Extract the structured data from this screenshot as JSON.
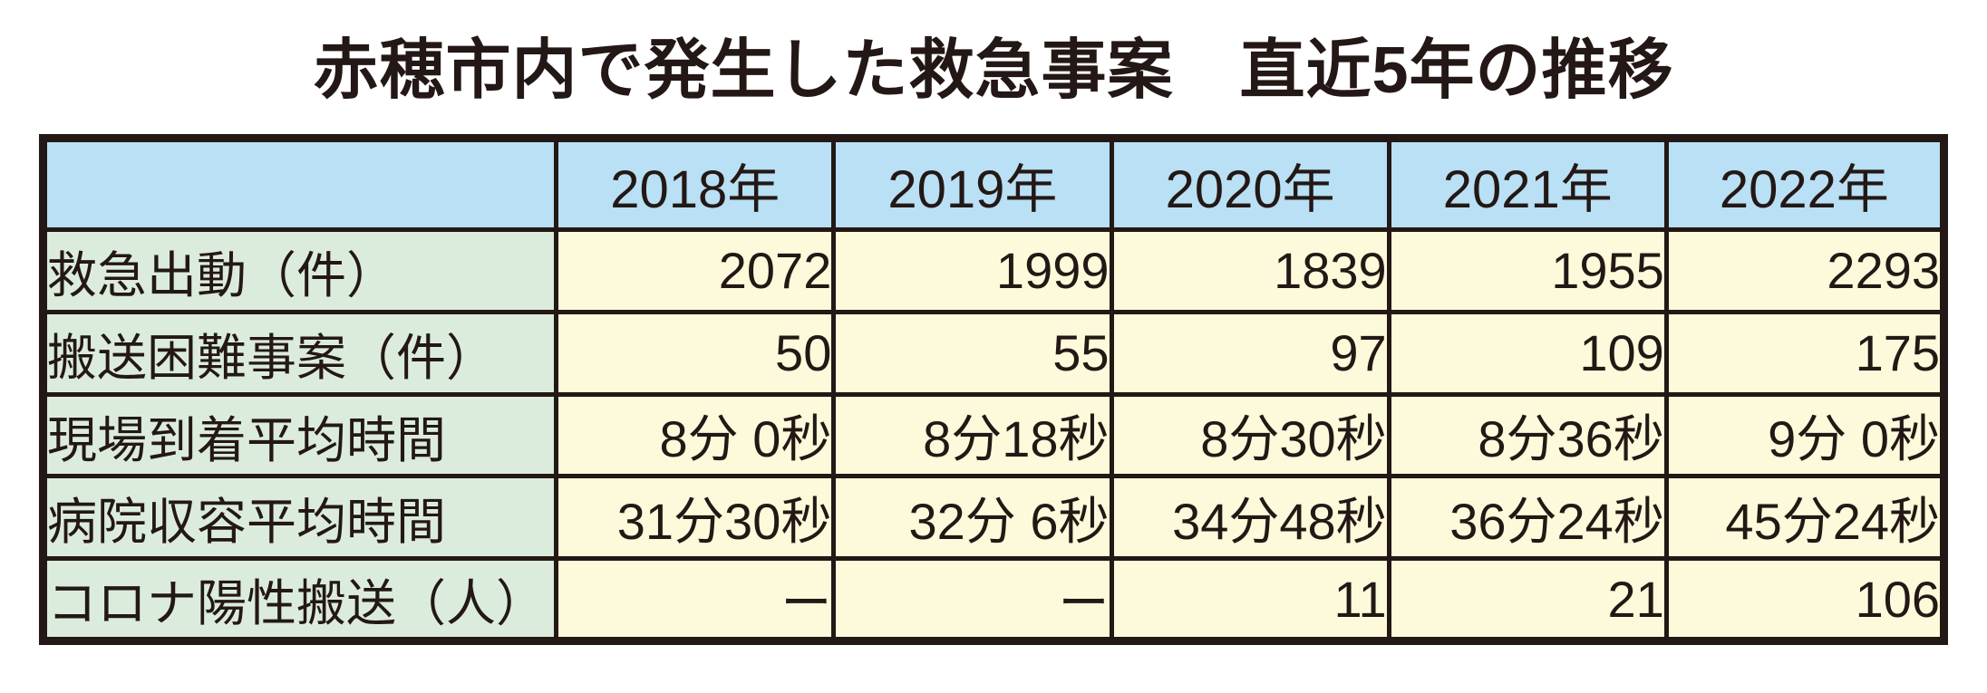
{
  "title": "赤穂市内で発生した救急事案　直近5年の推移",
  "colors": {
    "header_bg": "#b9e0f4",
    "label_bg": "#dcecdc",
    "cell_bg": "#fcfada",
    "border": "#231815",
    "text": "#231815",
    "background": "#ffffff"
  },
  "chart_data": {
    "type": "table",
    "title": "赤穂市内で発生した救急事案　直近5年の推移",
    "columns": [
      "",
      "2018年",
      "2019年",
      "2020年",
      "2021年",
      "2022年"
    ],
    "rows": [
      {
        "label": "救急出動（件）",
        "values": [
          "2072",
          "1999",
          "1839",
          "1955",
          "2293"
        ]
      },
      {
        "label": "搬送困難事案（件）",
        "values": [
          "50",
          "55",
          "97",
          "109",
          "175"
        ]
      },
      {
        "label": "現場到着平均時間",
        "values": [
          "8分 0秒",
          "8分18秒",
          "8分30秒",
          "8分36秒",
          "9分 0秒"
        ]
      },
      {
        "label": "病院収容平均時間",
        "values": [
          "31分30秒",
          "32分 6秒",
          "34分48秒",
          "36分24秒",
          "45分24秒"
        ]
      },
      {
        "label": "コロナ陽性搬送（人）",
        "values": [
          "ー",
          "ー",
          "11",
          "21",
          "106"
        ]
      }
    ]
  }
}
